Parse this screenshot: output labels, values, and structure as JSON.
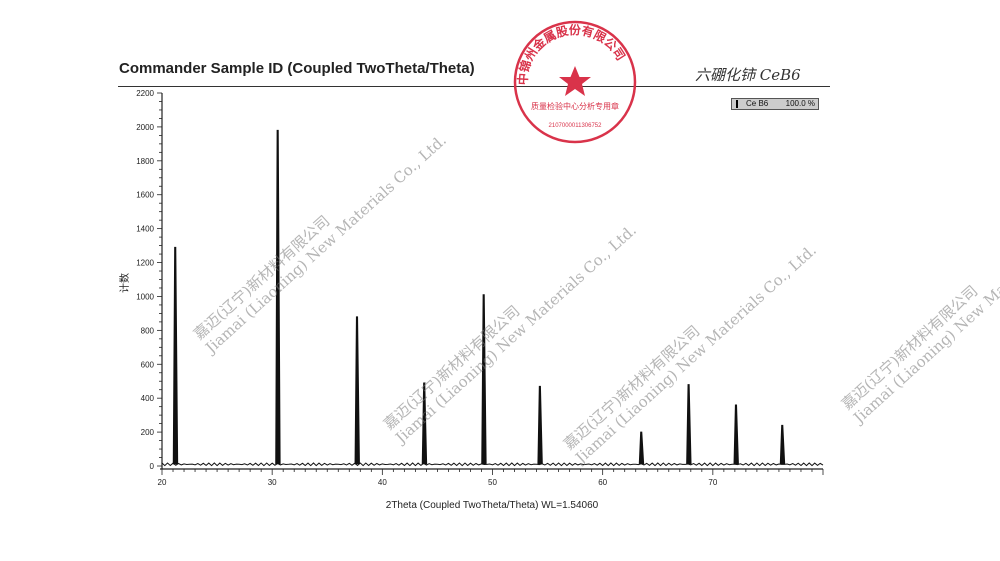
{
  "header": {
    "title": "Commander Sample ID (Coupled TwoTheta/Theta)",
    "handwritten_note": "六硼化铈 CeB6"
  },
  "legend": {
    "name": "Ce B6",
    "percent": "100.0 %"
  },
  "stamp": {
    "outer_text": "中锦州金属股份有限公司",
    "inner_text": "质量检验中心分析专用章",
    "number": "2107000011306752",
    "color": "#d9334a"
  },
  "watermark": {
    "line1": "嘉迈(辽宁)新材料有限公司",
    "line2": "Jiamai (Liaoning) New Materials Co., Ltd."
  },
  "chart_data": {
    "type": "line",
    "title": "Commander Sample ID (Coupled TwoTheta/Theta)",
    "xlabel": "2Theta (Coupled TwoTheta/Theta) WL=1.54060",
    "ylabel": "计数",
    "xlim": [
      20,
      80
    ],
    "ylim": [
      0,
      2200
    ],
    "xticks": [
      20,
      30,
      40,
      50,
      60,
      70
    ],
    "yticks": [
      0,
      200,
      400,
      600,
      800,
      1000,
      1200,
      1400,
      1600,
      1800,
      2000,
      2200
    ],
    "grid": false,
    "legend_position": "top-right",
    "series": [
      {
        "name": "Ce B6",
        "peaks": [
          {
            "x": 21.2,
            "y": 1290
          },
          {
            "x": 30.5,
            "y": 1980
          },
          {
            "x": 37.7,
            "y": 880
          },
          {
            "x": 43.8,
            "y": 490
          },
          {
            "x": 49.2,
            "y": 1010
          },
          {
            "x": 54.3,
            "y": 470
          },
          {
            "x": 63.5,
            "y": 200
          },
          {
            "x": 67.8,
            "y": 480
          },
          {
            "x": 72.1,
            "y": 360
          },
          {
            "x": 76.3,
            "y": 240
          }
        ],
        "baseline": 10
      }
    ]
  }
}
